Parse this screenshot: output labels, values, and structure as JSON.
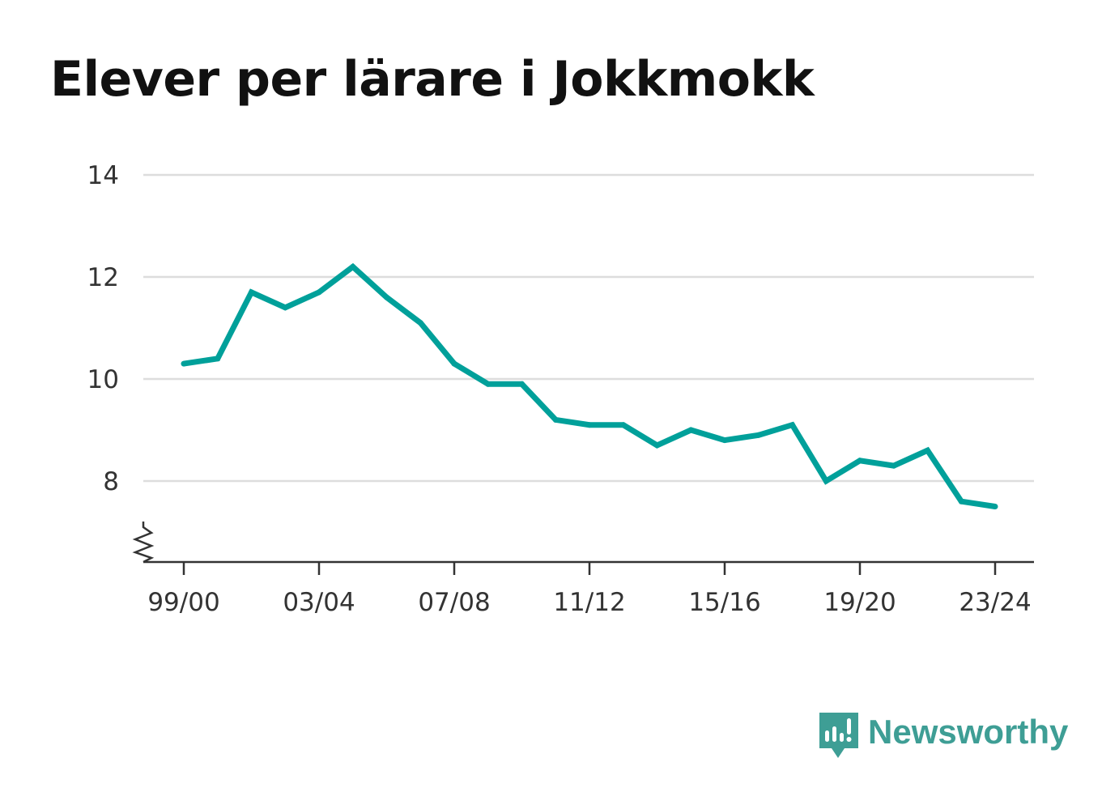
{
  "title": "Elever per lärare i Jokkmokk",
  "brand": {
    "name": "Newsworthy",
    "icon": "bar-chart-speech-bubble-icon",
    "color": "#3e9e95"
  },
  "chart_data": {
    "type": "line",
    "title": "Elever per lärare i Jokkmokk",
    "xlabel": "",
    "ylabel": "",
    "x": [
      "99/00",
      "00/01",
      "01/02",
      "02/03",
      "03/04",
      "04/05",
      "05/06",
      "06/07",
      "07/08",
      "08/09",
      "09/10",
      "10/11",
      "11/12",
      "12/13",
      "13/14",
      "14/15",
      "15/16",
      "16/17",
      "17/18",
      "18/19",
      "19/20",
      "20/21",
      "21/22",
      "22/23",
      "23/24"
    ],
    "xticks": [
      "99/00",
      "03/04",
      "07/08",
      "11/12",
      "15/16",
      "19/20",
      "23/24"
    ],
    "yticks": [
      8,
      10,
      12,
      14
    ],
    "ylim": [
      6.4,
      14
    ],
    "axis_break": true,
    "grid": true,
    "series": [
      {
        "color": "#00a09a",
        "values": [
          10.3,
          10.4,
          11.7,
          11.4,
          11.7,
          12.2,
          11.6,
          11.1,
          10.3,
          9.9,
          9.9,
          9.2,
          9.1,
          9.1,
          8.7,
          9.0,
          8.8,
          8.9,
          9.1,
          8.0,
          8.4,
          8.3,
          8.6,
          7.6,
          7.5
        ]
      }
    ]
  }
}
